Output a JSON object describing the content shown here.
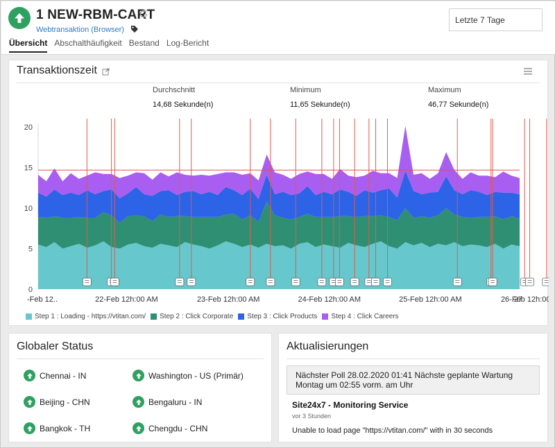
{
  "header": {
    "monitor_title": "1 NEW-RBM-CART",
    "monitor_type": "Webtransaktion (Browser)",
    "date_range": "Letzte 7 Tage",
    "status_icon": "arrow-up-icon",
    "status_color": "#2ea05f"
  },
  "tabs": [
    {
      "label": "Übersicht",
      "active": true
    },
    {
      "label": "Abschalthäufigkeit",
      "active": false
    },
    {
      "label": "Bestand",
      "active": false
    },
    {
      "label": "Log-Bericht",
      "active": false
    }
  ],
  "transaction_card": {
    "title": "Transaktionszeit",
    "stats": [
      {
        "label": "Durchschnitt",
        "value": "14,68 Sekunde(n)"
      },
      {
        "label": "Minimum",
        "value": "11,65 Sekunde(n)"
      },
      {
        "label": "Maximum",
        "value": "46,77 Sekunde(n)"
      }
    ]
  },
  "chart_data": {
    "type": "area",
    "stacked": true,
    "ylim": [
      0,
      20
    ],
    "yticks": [
      0,
      5,
      10,
      15,
      20
    ],
    "x_range": [
      0,
      572
    ],
    "xtick_positions": [
      0,
      105,
      226,
      346,
      466,
      587,
      693
    ],
    "xtick_labels": [
      "-Feb 12..",
      "22-Feb 12h:00 AM",
      "23-Feb 12h:00 AM",
      "24-Feb 12h:00 AM",
      "25-Feb 12h:00 AM",
      "26-Feb 12h:00 AM",
      "27"
    ],
    "average_line": 14.68,
    "series": [
      {
        "name": "Step 1 : Loading - https://vtitan.com/",
        "color": "#66c7cd",
        "values": [
          5.5,
          5.2,
          5.8,
          5.0,
          5.3,
          5.6,
          5.1,
          5.4,
          5.9,
          5.2,
          5.0,
          5.5,
          5.7,
          5.3,
          5.1,
          5.6,
          5.4,
          5.2,
          5.8,
          5.5,
          5.3,
          5.0,
          5.4,
          5.9,
          5.6,
          5.2,
          5.5,
          5.1,
          5.7,
          5.3,
          5.4,
          5.0,
          5.6,
          5.8,
          5.2,
          5.5,
          5.3,
          5.1,
          5.7,
          5.4,
          5.2,
          5.6,
          5.9,
          5.3,
          5.0,
          5.5,
          5.4,
          5.7,
          5.2,
          5.6,
          5.1,
          5.8,
          5.3,
          5.5,
          5.4,
          5.2,
          5.6,
          5.0,
          5.5,
          5.3
        ]
      },
      {
        "name": "Step 2 : Click Corporate",
        "color": "#2f8f73",
        "values": [
          3.4,
          3.6,
          3.2,
          3.8,
          3.5,
          3.3,
          3.7,
          3.4,
          3.6,
          3.9,
          3.2,
          3.5,
          3.4,
          3.7,
          3.3,
          3.6,
          3.5,
          3.8,
          3.2,
          3.4,
          3.6,
          3.9,
          3.5,
          3.3,
          3.7,
          3.4,
          3.6,
          3.2,
          3.5,
          3.8,
          3.4,
          3.6,
          3.3,
          3.5,
          3.7,
          3.4,
          3.6,
          3.9,
          3.3,
          3.5,
          3.8,
          3.4,
          3.2,
          3.6,
          3.5,
          3.7,
          3.4,
          3.3,
          3.6,
          3.5,
          3.8,
          3.4,
          3.6,
          3.3,
          3.5,
          3.7,
          3.4,
          3.6,
          3.5,
          3.4
        ]
      },
      {
        "name": "Step 3 : Click Products",
        "color": "#2d63e6",
        "values": [
          3.0,
          2.6,
          3.3,
          2.8,
          3.1,
          2.7,
          3.4,
          2.9,
          2.6,
          3.2,
          3.0,
          2.8,
          3.5,
          2.7,
          3.1,
          2.9,
          3.3,
          2.6,
          3.0,
          3.2,
          2.8,
          3.1,
          2.7,
          3.4,
          2.9,
          3.0,
          3.3,
          2.8,
          3.1,
          2.6,
          3.2,
          3.0,
          2.9,
          3.4,
          2.7,
          3.1,
          2.8,
          3.3,
          3.0,
          2.6,
          3.2,
          2.9,
          3.1,
          3.5,
          2.8,
          3.0,
          3.3,
          2.7,
          3.1,
          2.9,
          3.2,
          3.0,
          2.8,
          3.4,
          3.1,
          2.7,
          3.0,
          3.3,
          2.9,
          3.0
        ]
      },
      {
        "name": "Step 4 : Click Careers",
        "color": "#a85ef0",
        "values": [
          2.2,
          1.9,
          2.6,
          1.7,
          2.4,
          2.0,
          1.8,
          2.7,
          2.1,
          1.9,
          2.5,
          2.2,
          1.8,
          2.6,
          2.0,
          2.3,
          1.7,
          2.8,
          2.1,
          1.9,
          2.4,
          2.0,
          2.6,
          1.8,
          2.2,
          2.5,
          1.9,
          2.3,
          1.7,
          2.7,
          2.1,
          2.0,
          2.4,
          1.8,
          2.6,
          2.2,
          1.9,
          2.5,
          2.0,
          2.3,
          1.8,
          2.7,
          2.1,
          1.9,
          2.4,
          2.2,
          2.0,
          2.6,
          1.7,
          2.3,
          2.1,
          2.5,
          1.9,
          2.2,
          2.0,
          2.4,
          1.8,
          2.6,
          2.1,
          2.0
        ]
      }
    ],
    "spike_values": [
      {
        "index": 45,
        "values": [
          5.8,
          4.2,
          4.6,
          5.5
        ]
      },
      {
        "index": 28,
        "values": [
          5.6,
          5.2,
          3.3,
          2.5
        ]
      },
      {
        "index": 50,
        "values": [
          5.4,
          4.6,
          3.9,
          3.0
        ]
      }
    ],
    "event_markers": [
      58,
      87,
      91,
      168,
      182,
      252,
      276,
      306,
      337,
      351,
      358,
      376,
      393,
      401,
      415,
      498,
      538,
      540,
      578,
      584,
      604,
      663,
      669,
      684,
      697
    ]
  },
  "global_status": {
    "title": "Globaler Status",
    "locations": [
      {
        "name": "Chennai - IN"
      },
      {
        "name": "Washington - US (Primär)"
      },
      {
        "name": "Beijing - CHN"
      },
      {
        "name": "Bengaluru - IN"
      },
      {
        "name": "Bangkok - TH"
      },
      {
        "name": "Chengdu - CHN"
      }
    ]
  },
  "updates": {
    "title": "Aktualisierungen",
    "poll_line1": "Nächster Poll 28.02.2020 01:41  Nächste geplante Wartung",
    "poll_line2": "Montag um 02:55  vorm. am Uhr",
    "service_name": "Site24x7 - Monitoring Service",
    "service_time": "vor 3 Stunden",
    "service_message": "Unable to load page \"https://vtitan.com/\" with in 30 seconds"
  }
}
